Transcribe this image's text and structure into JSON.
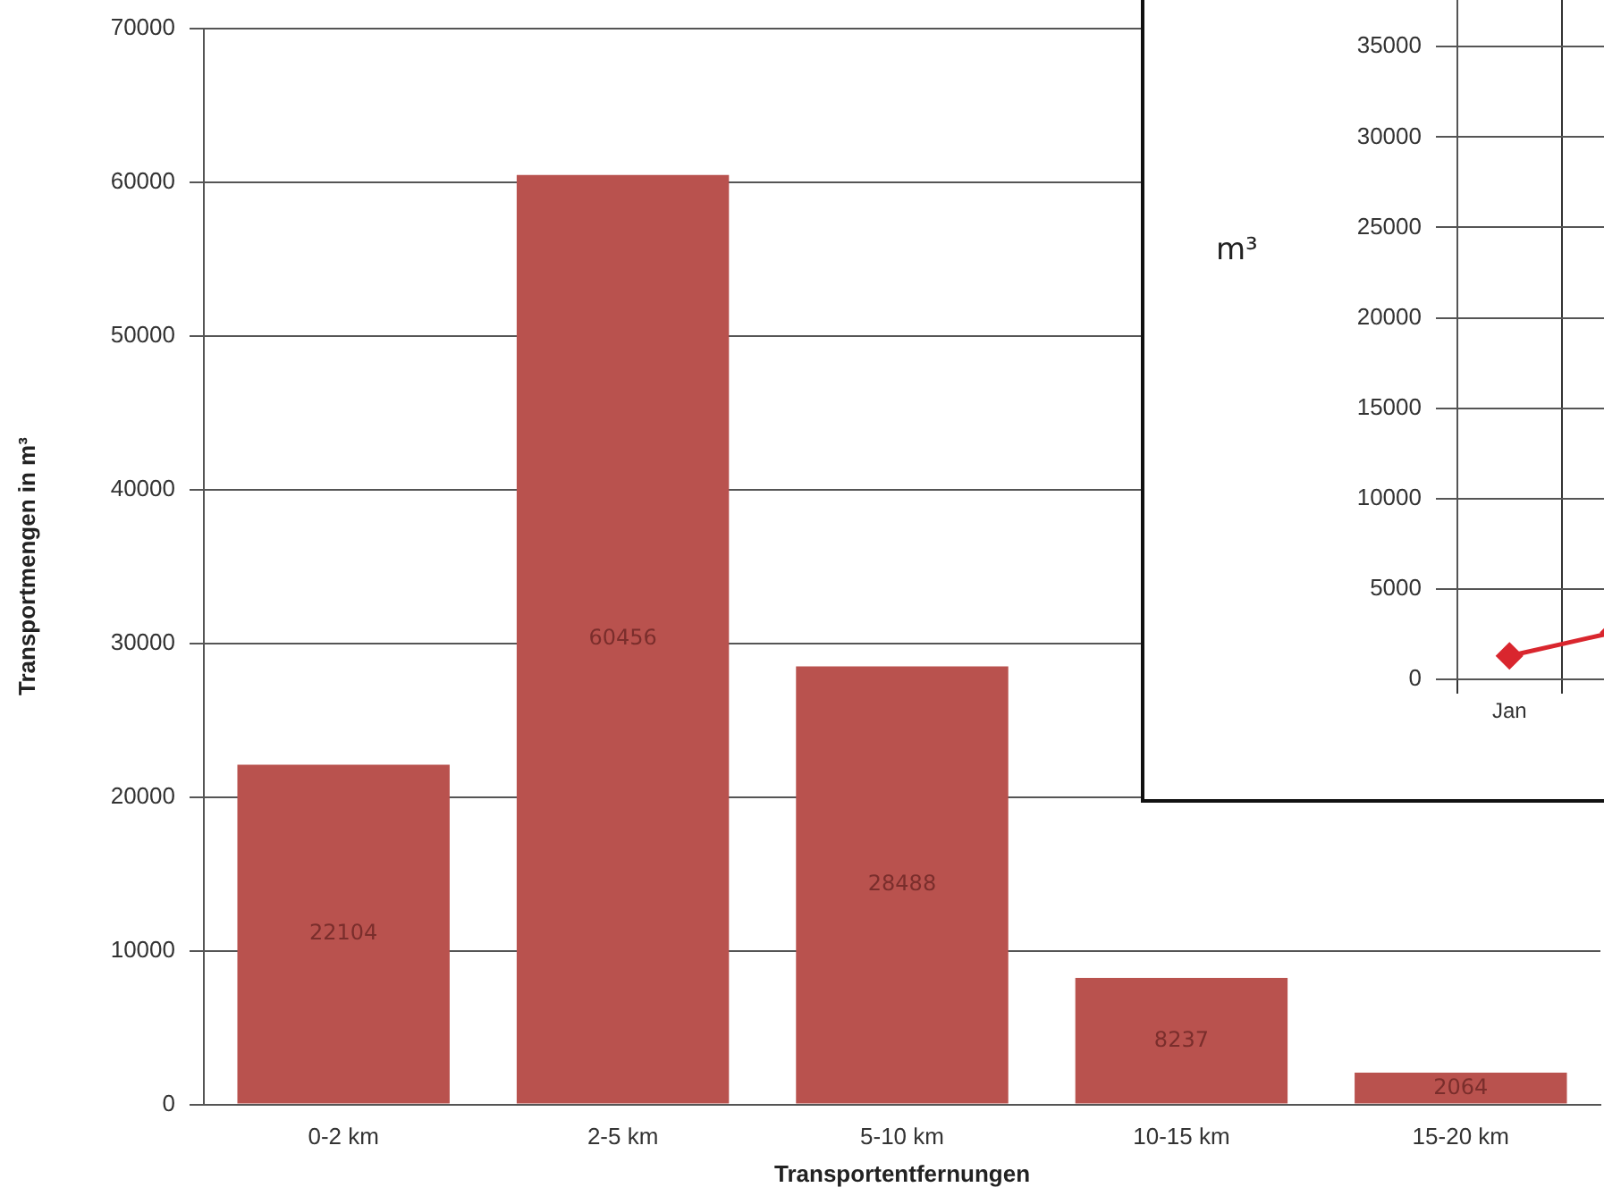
{
  "chart_data": [
    {
      "type": "bar",
      "xlabel": "Transportentfernungen",
      "ylabel": "Transportmengen in m³",
      "categories": [
        "0-2 km",
        "2-5 km",
        "5-10 km",
        "10-15 km",
        "15-20 km"
      ],
      "values": [
        22104,
        60456,
        28488,
        8237,
        2064
      ],
      "color": "#b9524e",
      "ylim": [
        0,
        70000
      ],
      "yticks": [
        0,
        10000,
        20000,
        30000,
        40000,
        50000,
        60000,
        70000
      ],
      "grid": "y",
      "data_labels": true,
      "legend": false
    },
    {
      "type": "line",
      "ylabel": "m³",
      "categories": [
        "Jan",
        null
      ],
      "values": [
        1300,
        2600
      ],
      "color": "#d9262e",
      "marker": "diamond",
      "ylim": [
        0,
        38000
      ],
      "yticks": [
        0,
        5000,
        10000,
        15000,
        20000,
        25000,
        30000,
        35000
      ],
      "grid": true,
      "legend": false
    }
  ]
}
